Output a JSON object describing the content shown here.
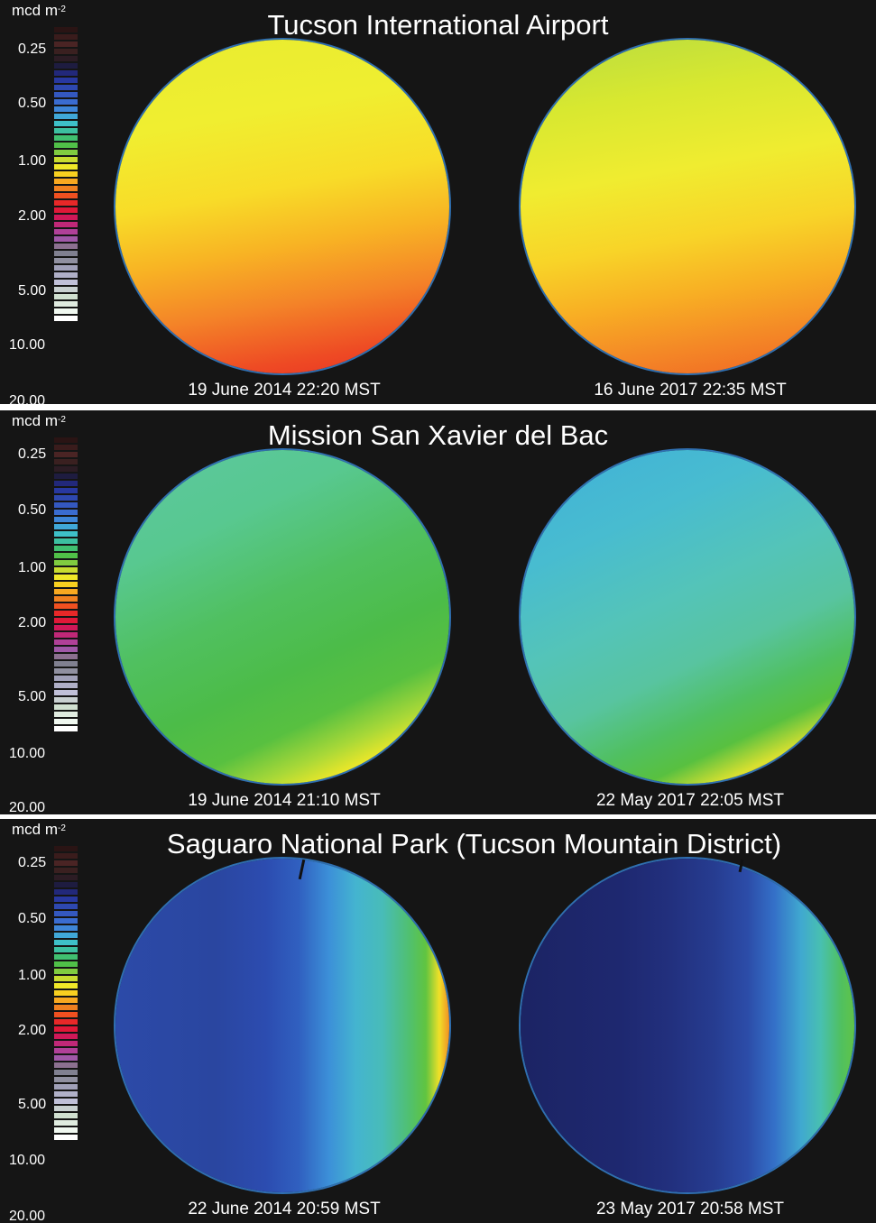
{
  "scale": {
    "unit_main": "mcd m",
    "unit_exp": "-2",
    "ticks": [
      "0.25",
      "0.50",
      "1.00",
      "2.00",
      "5.00",
      "10.00",
      "20.00"
    ],
    "colors": [
      "#2a1414",
      "#3a1c1c",
      "#4a2424",
      "#3a2020",
      "#2c1c24",
      "#1e1c40",
      "#22287a",
      "#2838a0",
      "#2e48b0",
      "#3458c0",
      "#3a6cd0",
      "#3e86d8",
      "#40a8d8",
      "#3ec0c8",
      "#3cc0a0",
      "#40c070",
      "#50c048",
      "#80cc40",
      "#c8dc30",
      "#f0e828",
      "#f8d020",
      "#f8a820",
      "#f08020",
      "#f05020",
      "#e82828",
      "#e01838",
      "#d01858",
      "#c02878",
      "#b04098",
      "#a058a8",
      "#8c7090",
      "#808090",
      "#9090a0",
      "#a0a0b8",
      "#b0b0c8",
      "#c0c0d8",
      "#c8d0d0",
      "#d0e0d0",
      "#e0ece0",
      "#f0f8f0",
      "#ffffff"
    ]
  },
  "panels": [
    {
      "title": "Tucson International Airport",
      "left_caption": "19 June 2014 22:20 MST",
      "right_caption": "16 June 2017 22:35 MST"
    },
    {
      "title": "Mission San Xavier del Bac",
      "left_caption": "19 June 2014 21:10 MST",
      "right_caption": "22 May 2017 22:05 MST"
    },
    {
      "title": "Saguaro National Park (Tucson Mountain District)",
      "left_caption": "22 June 2014 20:59 MST",
      "right_caption": "23 May 2017 20:58 MST"
    }
  ]
}
